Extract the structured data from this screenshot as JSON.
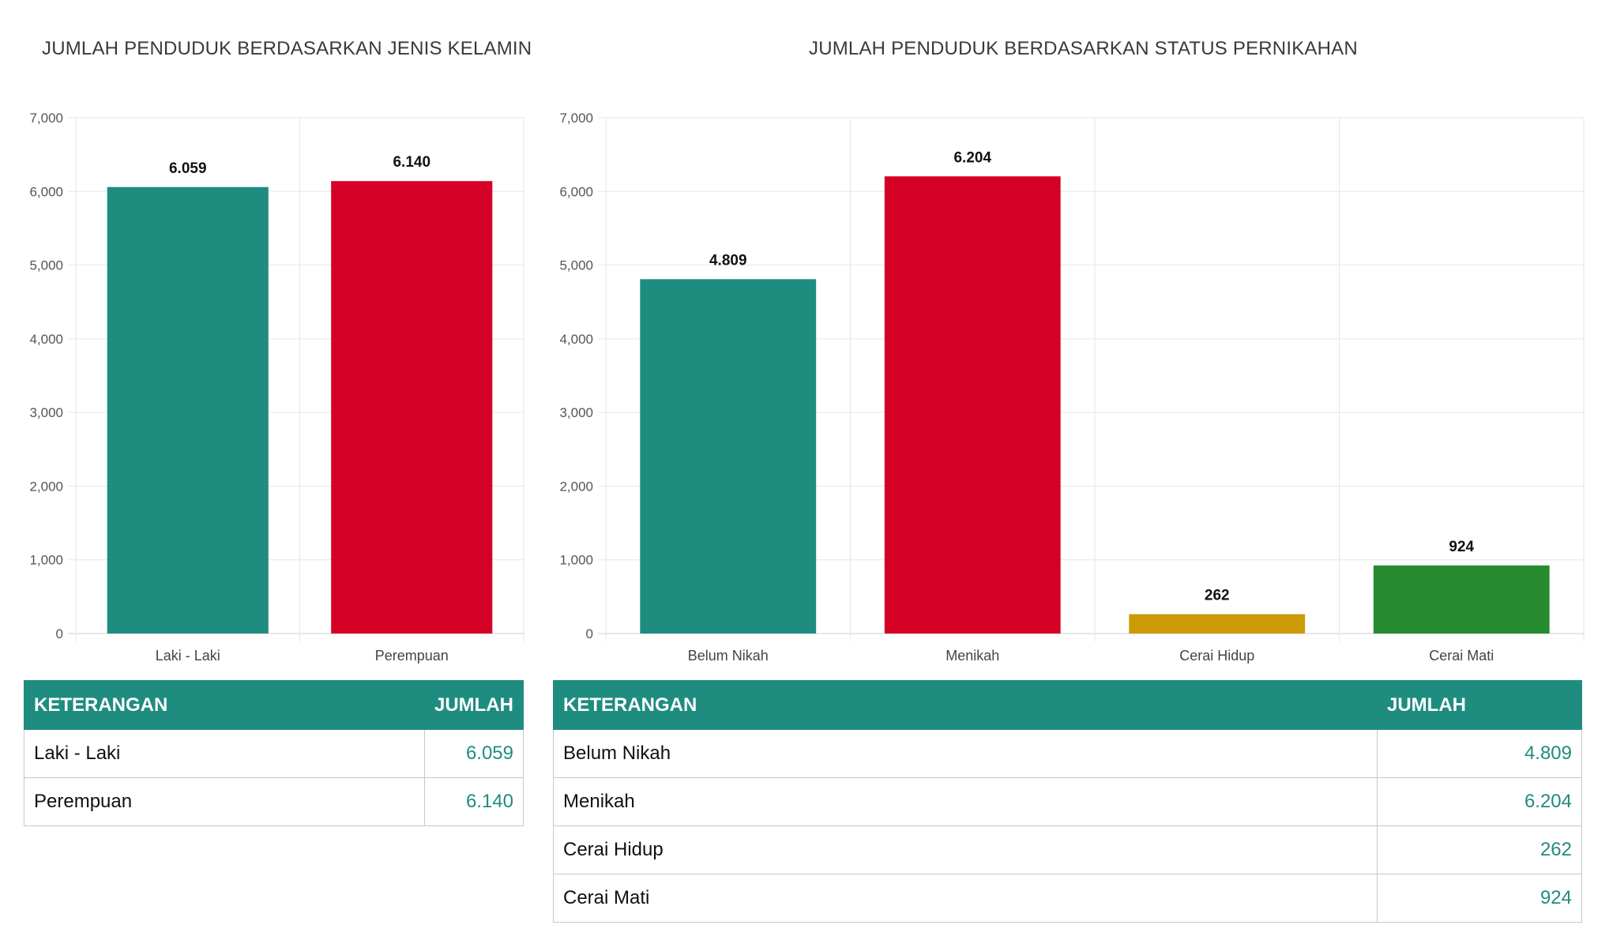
{
  "gender": {
    "title": "JUMLAH PENDUDUK BERDASARKAN JENIS KELAMIN",
    "table": {
      "headers": [
        "KETERANGAN",
        "JUMLAH"
      ],
      "rows": [
        {
          "label": "Laki - Laki",
          "value": "6.059"
        },
        {
          "label": "Perempuan",
          "value": "6.140"
        }
      ]
    }
  },
  "marital": {
    "title": "JUMLAH PENDUDUK BERDASARKAN STATUS PERNIKAHAN",
    "table": {
      "headers": [
        "KETERANGAN",
        "JUMLAH"
      ],
      "rows": [
        {
          "label": "Belum Nikah",
          "value": "4.809"
        },
        {
          "label": "Menikah",
          "value": "6.204"
        },
        {
          "label": "Cerai Hidup",
          "value": "262"
        },
        {
          "label": "Cerai Mati",
          "value": "924"
        }
      ]
    }
  },
  "chart_data": [
    {
      "type": "bar",
      "title": "JUMLAH PENDUDUK BERDASARKAN JENIS KELAMIN",
      "categories": [
        "Laki - Laki",
        "Perempuan"
      ],
      "values": [
        6059,
        6140
      ],
      "data_labels": [
        "6.059",
        "6.140"
      ],
      "colors": [
        "#1f8c80",
        "#d50025"
      ],
      "ylim": [
        0,
        7000
      ],
      "yticks": [
        0,
        1000,
        2000,
        3000,
        4000,
        5000,
        6000,
        7000
      ],
      "ytick_labels": [
        "0",
        "1,000",
        "2,000",
        "3,000",
        "4,000",
        "5,000",
        "6,000",
        "7,000"
      ],
      "grid": true,
      "legend": "none"
    },
    {
      "type": "bar",
      "title": "JUMLAH PENDUDUK BERDASARKAN STATUS PERNIKAHAN",
      "categories": [
        "Belum Nikah",
        "Menikah",
        "Cerai Hidup",
        "Cerai Mati"
      ],
      "values": [
        4809,
        6204,
        262,
        924
      ],
      "data_labels": [
        "4.809",
        "6.204",
        "262",
        "924"
      ],
      "colors": [
        "#1f8c80",
        "#d50025",
        "#cc9a06",
        "#268a2e"
      ],
      "ylim": [
        0,
        7000
      ],
      "yticks": [
        0,
        1000,
        2000,
        3000,
        4000,
        5000,
        6000,
        7000
      ],
      "ytick_labels": [
        "0",
        "1,000",
        "2,000",
        "3,000",
        "4,000",
        "5,000",
        "6,000",
        "7,000"
      ],
      "grid": true,
      "legend": "none"
    }
  ]
}
